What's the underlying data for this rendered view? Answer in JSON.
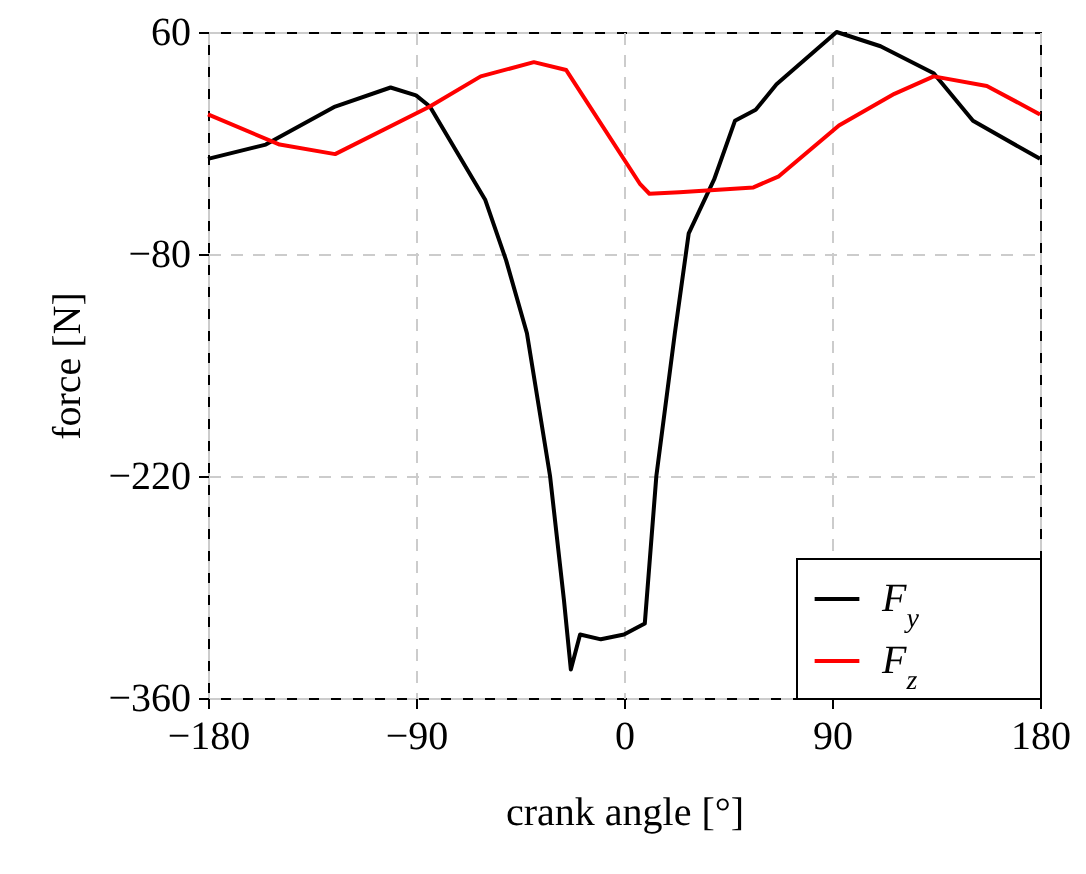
{
  "chart_data": {
    "type": "line",
    "xlabel": "crank angle [°]",
    "ylabel": "force [N]",
    "xlim": [
      -180,
      180
    ],
    "ylim": [
      -360,
      60
    ],
    "xticks": [
      -180,
      -90,
      0,
      90,
      180
    ],
    "yticks": [
      60,
      -80,
      -220,
      -360
    ],
    "grid": true,
    "legend": "bottom right",
    "line_style": "solid",
    "marker": "none",
    "series": [
      {
        "name": "F$_{y}$",
        "color": "#000000",
        "x": [
          -180,
          -155,
          -125,
          -101,
          -90,
          -84,
          -60,
          -51,
          -42,
          -32,
          -26,
          -23,
          -19,
          -10,
          0,
          9,
          14,
          22,
          28,
          39,
          48,
          57,
          66,
          92,
          111,
          134,
          151,
          180
        ],
        "values": [
          -20,
          -11,
          13,
          25,
          20,
          13,
          -46,
          -84,
          -130,
          -220,
          -298,
          -342,
          -320,
          -323,
          -320,
          -313,
          -220,
          -130,
          -67,
          -33,
          4,
          11,
          27,
          60,
          51,
          34,
          4,
          -20
        ]
      },
      {
        "name": "F$_{z}$",
        "color": "#ff0000",
        "x": [
          -180,
          -149,
          -125,
          -84,
          -62,
          -39,
          -25,
          7,
          11,
          24,
          56,
          67,
          93,
          117,
          134,
          157,
          180
        ],
        "values": [
          8,
          -11,
          -17,
          13,
          32,
          41,
          36,
          -36,
          -42,
          -41,
          -38,
          -31,
          1,
          21,
          32,
          26,
          8
        ]
      }
    ]
  }
}
